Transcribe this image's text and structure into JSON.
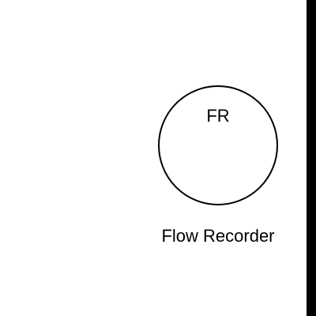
{
  "instrument": {
    "tag": "FR",
    "label": "Flow Recorder",
    "shape": "circle"
  },
  "colors": {
    "background": "#ffffff",
    "stroke": "#000000",
    "text": "#000000"
  }
}
